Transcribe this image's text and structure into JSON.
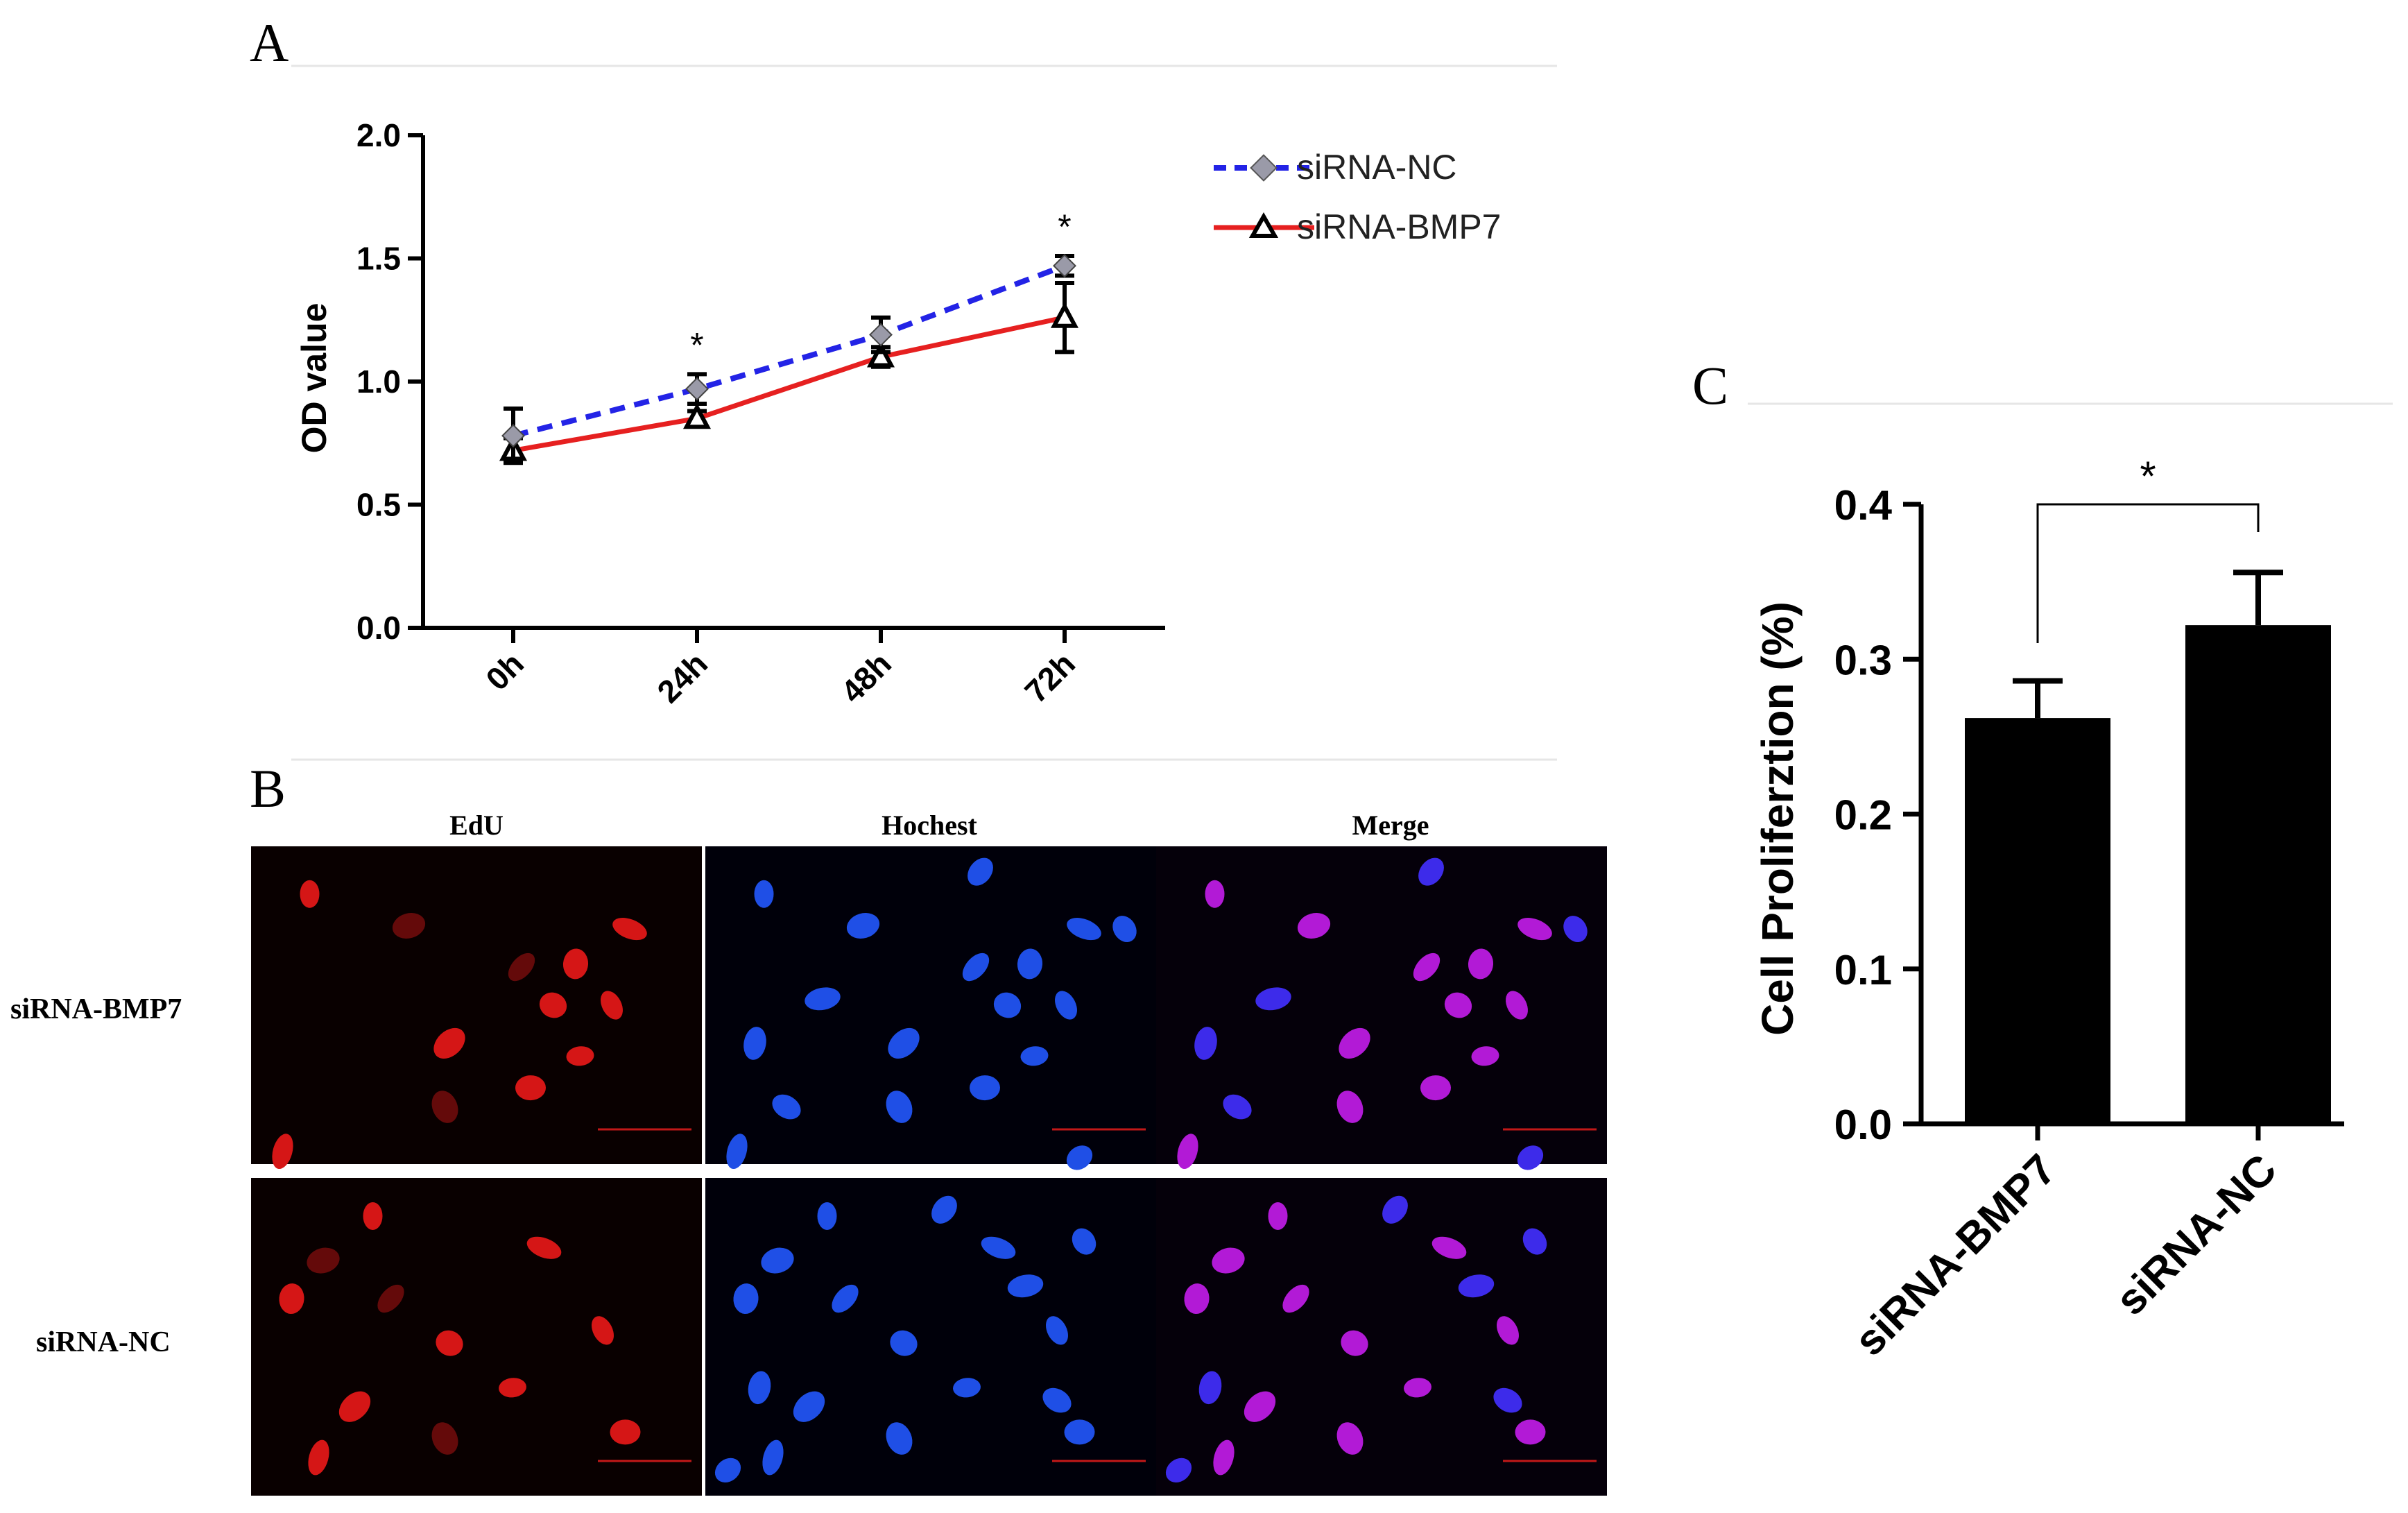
{
  "colors": {
    "nc_line": "#2323e6",
    "bmp7_line": "#e62020",
    "bar_fill": "#000000",
    "axis": "#000000"
  },
  "panels": {
    "a_label": "A",
    "b_label": "B",
    "c_label": "C"
  },
  "chart_data": [
    {
      "type": "line",
      "panel": "A",
      "ylabel": "OD value",
      "xlabel": "",
      "categories": [
        "0h",
        "24h",
        "48h",
        "72h"
      ],
      "ylim": [
        0.0,
        2.0
      ],
      "yticks": [
        "0.0",
        "0.5",
        "1.0",
        "1.5",
        "2.0"
      ],
      "grid": false,
      "legend_position": "top-right",
      "series": [
        {
          "name": "siRNA-NC",
          "style": "dashed",
          "marker": "diamond",
          "values": [
            0.78,
            0.97,
            1.19,
            1.47
          ],
          "errors": [
            0.11,
            0.06,
            0.07,
            0.04
          ]
        },
        {
          "name": "siRNA-BMP7",
          "style": "solid",
          "marker": "triangle",
          "values": [
            0.72,
            0.85,
            1.1,
            1.26
          ],
          "errors": [
            0.05,
            0.03,
            0.04,
            0.14
          ]
        }
      ],
      "significance": [
        "",
        "*",
        "",
        "*"
      ]
    },
    {
      "type": "bar",
      "panel": "C",
      "ylabel": "Cell Proliferztion (%)",
      "xlabel": "",
      "categories": [
        "siRNA-BMP7",
        "siRNA-NC"
      ],
      "values": [
        0.262,
        0.322
      ],
      "errors": [
        0.024,
        0.034
      ],
      "ylim": [
        0.0,
        0.4
      ],
      "yticks": [
        "0.0",
        "0.1",
        "0.2",
        "0.3",
        "0.4"
      ],
      "grid": false,
      "significance": "*"
    }
  ],
  "microscopy": {
    "columns": [
      "EdU",
      "Hochest",
      "Merge"
    ],
    "rows": [
      "siRNA-BMP7",
      "siRNA-NC"
    ]
  }
}
